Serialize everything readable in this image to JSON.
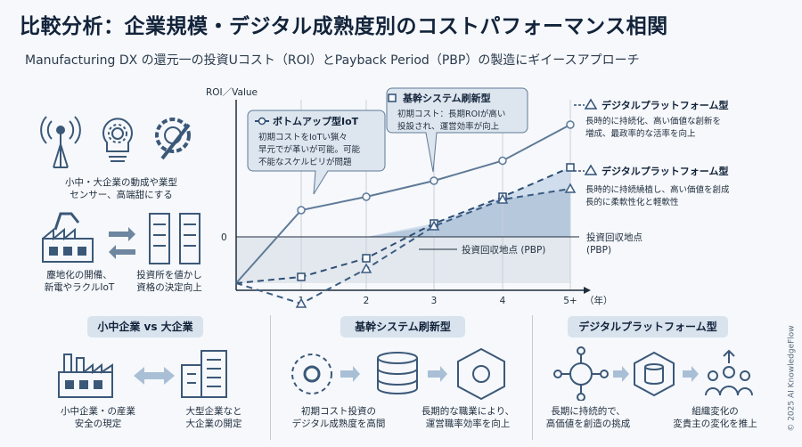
{
  "header": {
    "title": "比較分析：企業規模・デジタル成熟度別のコストパフォーマンス相関",
    "subtitle": "Manufacturing DX の還元一の投資Uコスト（ROI）とPayback Period（PBP）の製造にギイースアプローチ"
  },
  "left_panel": {
    "row1_label": [
      "小中・大企業の動成や業型",
      "センサー、高端甜にする"
    ],
    "row2_left_label": [
      "塵地化の開備、",
      "新電やラクルIoT"
    ],
    "row2_right_label": [
      "投資所を値かし",
      "資格の決定向上"
    ]
  },
  "chart_data": {
    "type": "line",
    "ylabel": "ROI／Value",
    "xlabel": "（年）",
    "x": [
      "1",
      "2",
      "3",
      "4",
      "5+"
    ],
    "y_tick_labels": [
      "0"
    ],
    "series": [
      {
        "name": "ボトムアップ型IoT",
        "style": "solid-circle",
        "color": "#5f7a98",
        "values": [
          1.0,
          1.5,
          2.1,
          2.85,
          4.2
        ]
      },
      {
        "name": "基幹システム刷新型",
        "style": "dashed-square",
        "color": "#2f4f74",
        "values": [
          -1.5,
          -0.8,
          0.5,
          1.5,
          2.6
        ]
      },
      {
        "name": "デジタルプラットフォーム型",
        "style": "dashed-triangle",
        "color": "#3c5c82",
        "values": [
          -2.5,
          -1.2,
          0.4,
          1.4,
          1.8
        ]
      }
    ],
    "payback_label": "投資回収地点 (PBP)",
    "payback_axis_label": [
      "投資回収地点",
      "(PBP)"
    ]
  },
  "callouts": {
    "bottom_up": {
      "title": "ボトムアップ型IoT",
      "lines": [
        "初期コストをIoTい猟々",
        "早元でが革いが可能。可能",
        "不能なスケルビリが問題"
      ]
    },
    "core_system": {
      "title": "基幹システム刷新型",
      "lines": [
        "初期コスト：長期ROIが高い",
        "投設され、運営効率が向上"
      ]
    },
    "platform_top": {
      "title": "デジタルプラットフォーム型",
      "lines": [
        "長時的に持続化、高い価値な創新を",
        "増成、最政率的な活率を向上"
      ]
    },
    "platform_mid": {
      "title": "デジタルプラットフォーム型",
      "lines": [
        "長時的に持続繞植し、高い価値を創成",
        "長的に柔軟性化と軽軟性"
      ]
    }
  },
  "bottom_sections": [
    {
      "title": "小中企業 vs 大企業",
      "captions": [
        [
          "小中企業・の産業",
          "安全の現定"
        ],
        [
          "大型企業なと",
          "大企業の開定"
        ]
      ]
    },
    {
      "title": "基幹システム刷新型",
      "captions": [
        [
          "初期コスト投資の",
          "デジタル成熟度を高間"
        ],
        [
          "長期的な職業により、",
          "運営職率効率を向上"
        ]
      ]
    },
    {
      "title": "デジタルプラットフォーム型",
      "captions": [
        [
          "長期に持続的で、",
          "高価値を創造の挑成"
        ],
        [
          "組織変化の",
          "変貴主の変化を推上"
        ]
      ]
    }
  ],
  "footer": {
    "copyright": "© 2025 AI KnowledgeFlow"
  },
  "colors": {
    "navy": "#2f4f74",
    "slate": "#5f7a98",
    "shade": "#a9bfd6",
    "panel": "#d9e3ee"
  }
}
